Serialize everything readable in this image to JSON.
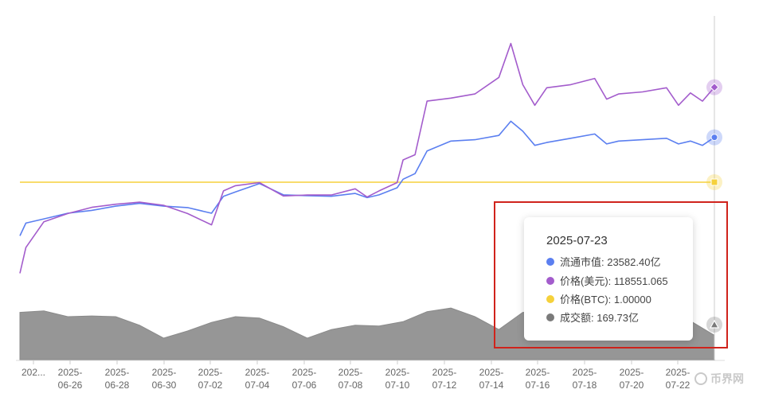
{
  "chart_data": {
    "type": "line",
    "x_tick_labels": [
      "202...",
      "2025-\n06-26",
      "2025-\n06-28",
      "2025-\n06-30",
      "2025-\n07-02",
      "2025-\n07-04",
      "2025-\n07-06",
      "2025-\n07-08",
      "2025-\n07-10",
      "2025-\n07-12",
      "2025-\n07-14",
      "2025-\n07-16",
      "2025-\n07-18",
      "2025-\n07-20",
      "2025-\n07-22"
    ],
    "x_range": [
      "2025-06-24",
      "2025-07-23"
    ],
    "series": [
      {
        "name": "流通市值",
        "unit": "亿",
        "color": "#5b7ff0",
        "points": [
          [
            "2025-06-24",
            20100
          ],
          [
            "2025-06-24T06",
            20550
          ],
          [
            "2025-06-25",
            20700
          ],
          [
            "2025-06-26",
            20900
          ],
          [
            "2025-06-27",
            21000
          ],
          [
            "2025-06-28",
            21150
          ],
          [
            "2025-06-29",
            21250
          ],
          [
            "2025-06-30",
            21150
          ],
          [
            "2025-07-01",
            21100
          ],
          [
            "2025-07-02",
            20900
          ],
          [
            "2025-07-02T12",
            21500
          ],
          [
            "2025-07-03",
            21650
          ],
          [
            "2025-07-04",
            21950
          ],
          [
            "2025-07-05",
            21550
          ],
          [
            "2025-07-06",
            21520
          ],
          [
            "2025-07-07",
            21500
          ],
          [
            "2025-07-08",
            21600
          ],
          [
            "2025-07-08T12",
            21450
          ],
          [
            "2025-07-09",
            21550
          ],
          [
            "2025-07-09T18",
            21800
          ],
          [
            "2025-07-10",
            22100
          ],
          [
            "2025-07-10T12",
            22300
          ],
          [
            "2025-07-11",
            23100
          ],
          [
            "2025-07-12",
            23450
          ],
          [
            "2025-07-13",
            23500
          ],
          [
            "2025-07-14",
            23650
          ],
          [
            "2025-07-14T12",
            24150
          ],
          [
            "2025-07-15",
            23800
          ],
          [
            "2025-07-15T12",
            23300
          ],
          [
            "2025-07-16",
            23400
          ],
          [
            "2025-07-17",
            23550
          ],
          [
            "2025-07-18",
            23700
          ],
          [
            "2025-07-18T12",
            23350
          ],
          [
            "2025-07-19",
            23450
          ],
          [
            "2025-07-20",
            23500
          ],
          [
            "2025-07-21",
            23550
          ],
          [
            "2025-07-21T12",
            23350
          ],
          [
            "2025-07-22",
            23450
          ],
          [
            "2025-07-22T12",
            23300
          ],
          [
            "2025-07-23",
            23582.4
          ]
        ]
      },
      {
        "name": "价格(美元)",
        "unit": "",
        "color": "#a35ccc",
        "points": [
          [
            "2025-06-24",
            100500
          ],
          [
            "2025-06-24T06",
            103000
          ],
          [
            "2025-06-25",
            105500
          ],
          [
            "2025-06-26",
            106300
          ],
          [
            "2025-06-27",
            106900
          ],
          [
            "2025-06-28",
            107200
          ],
          [
            "2025-06-29",
            107400
          ],
          [
            "2025-06-30",
            107100
          ],
          [
            "2025-07-01",
            106300
          ],
          [
            "2025-07-02",
            105200
          ],
          [
            "2025-07-02T12",
            108500
          ],
          [
            "2025-07-03",
            109000
          ],
          [
            "2025-07-04",
            109300
          ],
          [
            "2025-07-05",
            108000
          ],
          [
            "2025-07-06",
            108100
          ],
          [
            "2025-07-07",
            108100
          ],
          [
            "2025-07-08",
            108700
          ],
          [
            "2025-07-08T12",
            107900
          ],
          [
            "2025-07-09",
            108500
          ],
          [
            "2025-07-09T18",
            109300
          ],
          [
            "2025-07-10",
            111500
          ],
          [
            "2025-07-10T12",
            112000
          ],
          [
            "2025-07-11",
            117200
          ],
          [
            "2025-07-12",
            117500
          ],
          [
            "2025-07-13",
            117900
          ],
          [
            "2025-07-14",
            119500
          ],
          [
            "2025-07-14T12",
            122800
          ],
          [
            "2025-07-15",
            118800
          ],
          [
            "2025-07-15T12",
            116800
          ],
          [
            "2025-07-16",
            118500
          ],
          [
            "2025-07-17",
            118800
          ],
          [
            "2025-07-18",
            119400
          ],
          [
            "2025-07-18T12",
            117400
          ],
          [
            "2025-07-19",
            117900
          ],
          [
            "2025-07-20",
            118100
          ],
          [
            "2025-07-21",
            118500
          ],
          [
            "2025-07-21T12",
            116800
          ],
          [
            "2025-07-22",
            118000
          ],
          [
            "2025-07-22T12",
            117200
          ],
          [
            "2025-07-23",
            118551.065
          ]
        ]
      },
      {
        "name": "价格(BTC)",
        "unit": "",
        "color": "#f5d13b",
        "points": [
          [
            "2025-06-24",
            1.0
          ],
          [
            "2025-07-23",
            1.0
          ]
        ]
      },
      {
        "name": "成交额",
        "unit": "亿",
        "color": "#7a7a7a",
        "points": [
          [
            "2025-06-24",
            330
          ],
          [
            "2025-06-25",
            340
          ],
          [
            "2025-06-26",
            300
          ],
          [
            "2025-06-27",
            305
          ],
          [
            "2025-06-28",
            300
          ],
          [
            "2025-06-29",
            240
          ],
          [
            "2025-06-30",
            150
          ],
          [
            "2025-07-01",
            200
          ],
          [
            "2025-07-02",
            260
          ],
          [
            "2025-07-03",
            300
          ],
          [
            "2025-07-04",
            290
          ],
          [
            "2025-07-05",
            230
          ],
          [
            "2025-07-06",
            150
          ],
          [
            "2025-07-07",
            210
          ],
          [
            "2025-07-08",
            240
          ],
          [
            "2025-07-09",
            235
          ],
          [
            "2025-07-10",
            265
          ],
          [
            "2025-07-11",
            335
          ],
          [
            "2025-07-12",
            360
          ],
          [
            "2025-07-13",
            300
          ],
          [
            "2025-07-14",
            210
          ],
          [
            "2025-07-15",
            330
          ],
          [
            "2025-07-16",
            330
          ],
          [
            "2025-07-17",
            320
          ],
          [
            "2025-07-18",
            310
          ],
          [
            "2025-07-19",
            300
          ],
          [
            "2025-07-20",
            290
          ],
          [
            "2025-07-21",
            280
          ],
          [
            "2025-07-22",
            270
          ],
          [
            "2025-07-23",
            169.73
          ]
        ]
      }
    ],
    "markers": [
      {
        "series": "价格(美元)",
        "symbol": "diamond"
      },
      {
        "series": "流通市值",
        "symbol": "circle"
      },
      {
        "series": "价格(BTC)",
        "symbol": "square"
      },
      {
        "series": "成交额",
        "symbol": "triangle"
      }
    ],
    "grid": false,
    "legend": "none"
  },
  "tooltip": {
    "date": "2025-07-23",
    "rows": [
      {
        "label": "流通市值: 23582.40亿",
        "color": "#5b7ff0"
      },
      {
        "label": "价格(美元): 118551.065",
        "color": "#a35ccc"
      },
      {
        "label": "价格(BTC): 1.00000",
        "color": "#f5d13b"
      },
      {
        "label": "成交额: 169.73亿",
        "color": "#7a7a7a"
      }
    ]
  },
  "watermark": {
    "text": "币界网"
  },
  "highlight_color": "#d0231c"
}
